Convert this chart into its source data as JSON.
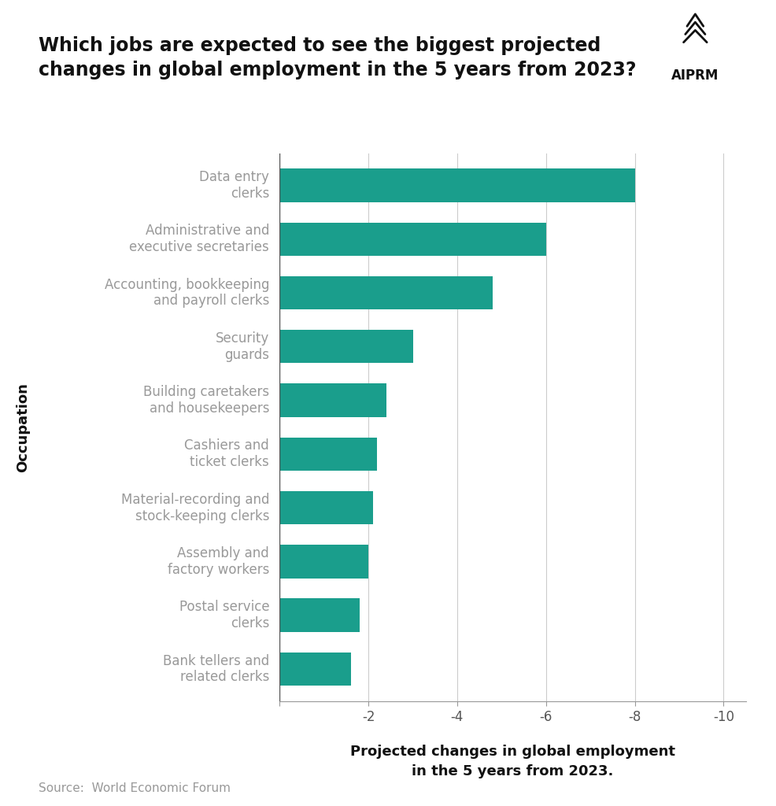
{
  "title_line1": "Which jobs are expected to see the biggest projected",
  "title_line2": "changes in global employment in the 5 years from 2023?",
  "categories": [
    "Data entry\nclerks",
    "Administrative and\nexecutive secretaries",
    "Accounting, bookkeeping\nand payroll clerks",
    "Security\nguards",
    "Building caretakers\nand housekeepers",
    "Cashiers and\nticket clerks",
    "Material-recording and\nstock-keeping clerks",
    "Assembly and\nfactory workers",
    "Postal service\nclerks",
    "Bank tellers and\nrelated clerks"
  ],
  "values": [
    -8.0,
    -6.0,
    -4.8,
    -3.0,
    -2.4,
    -2.2,
    -2.1,
    -2.0,
    -1.8,
    -1.6
  ],
  "bar_color": "#1a9e8c",
  "background_color": "#ffffff",
  "xlabel_line1": "Projected changes in global employment",
  "xlabel_line2": "in the 5 years from 2023.",
  "ylabel": "Occupation",
  "source_text": "Source:  World Economic Forum",
  "grid_color": "#cccccc",
  "title_fontsize": 17,
  "label_fontsize": 12,
  "tick_fontsize": 12,
  "source_fontsize": 11,
  "bar_height": 0.62,
  "label_color": "#999999",
  "axis_label_color": "#111111"
}
